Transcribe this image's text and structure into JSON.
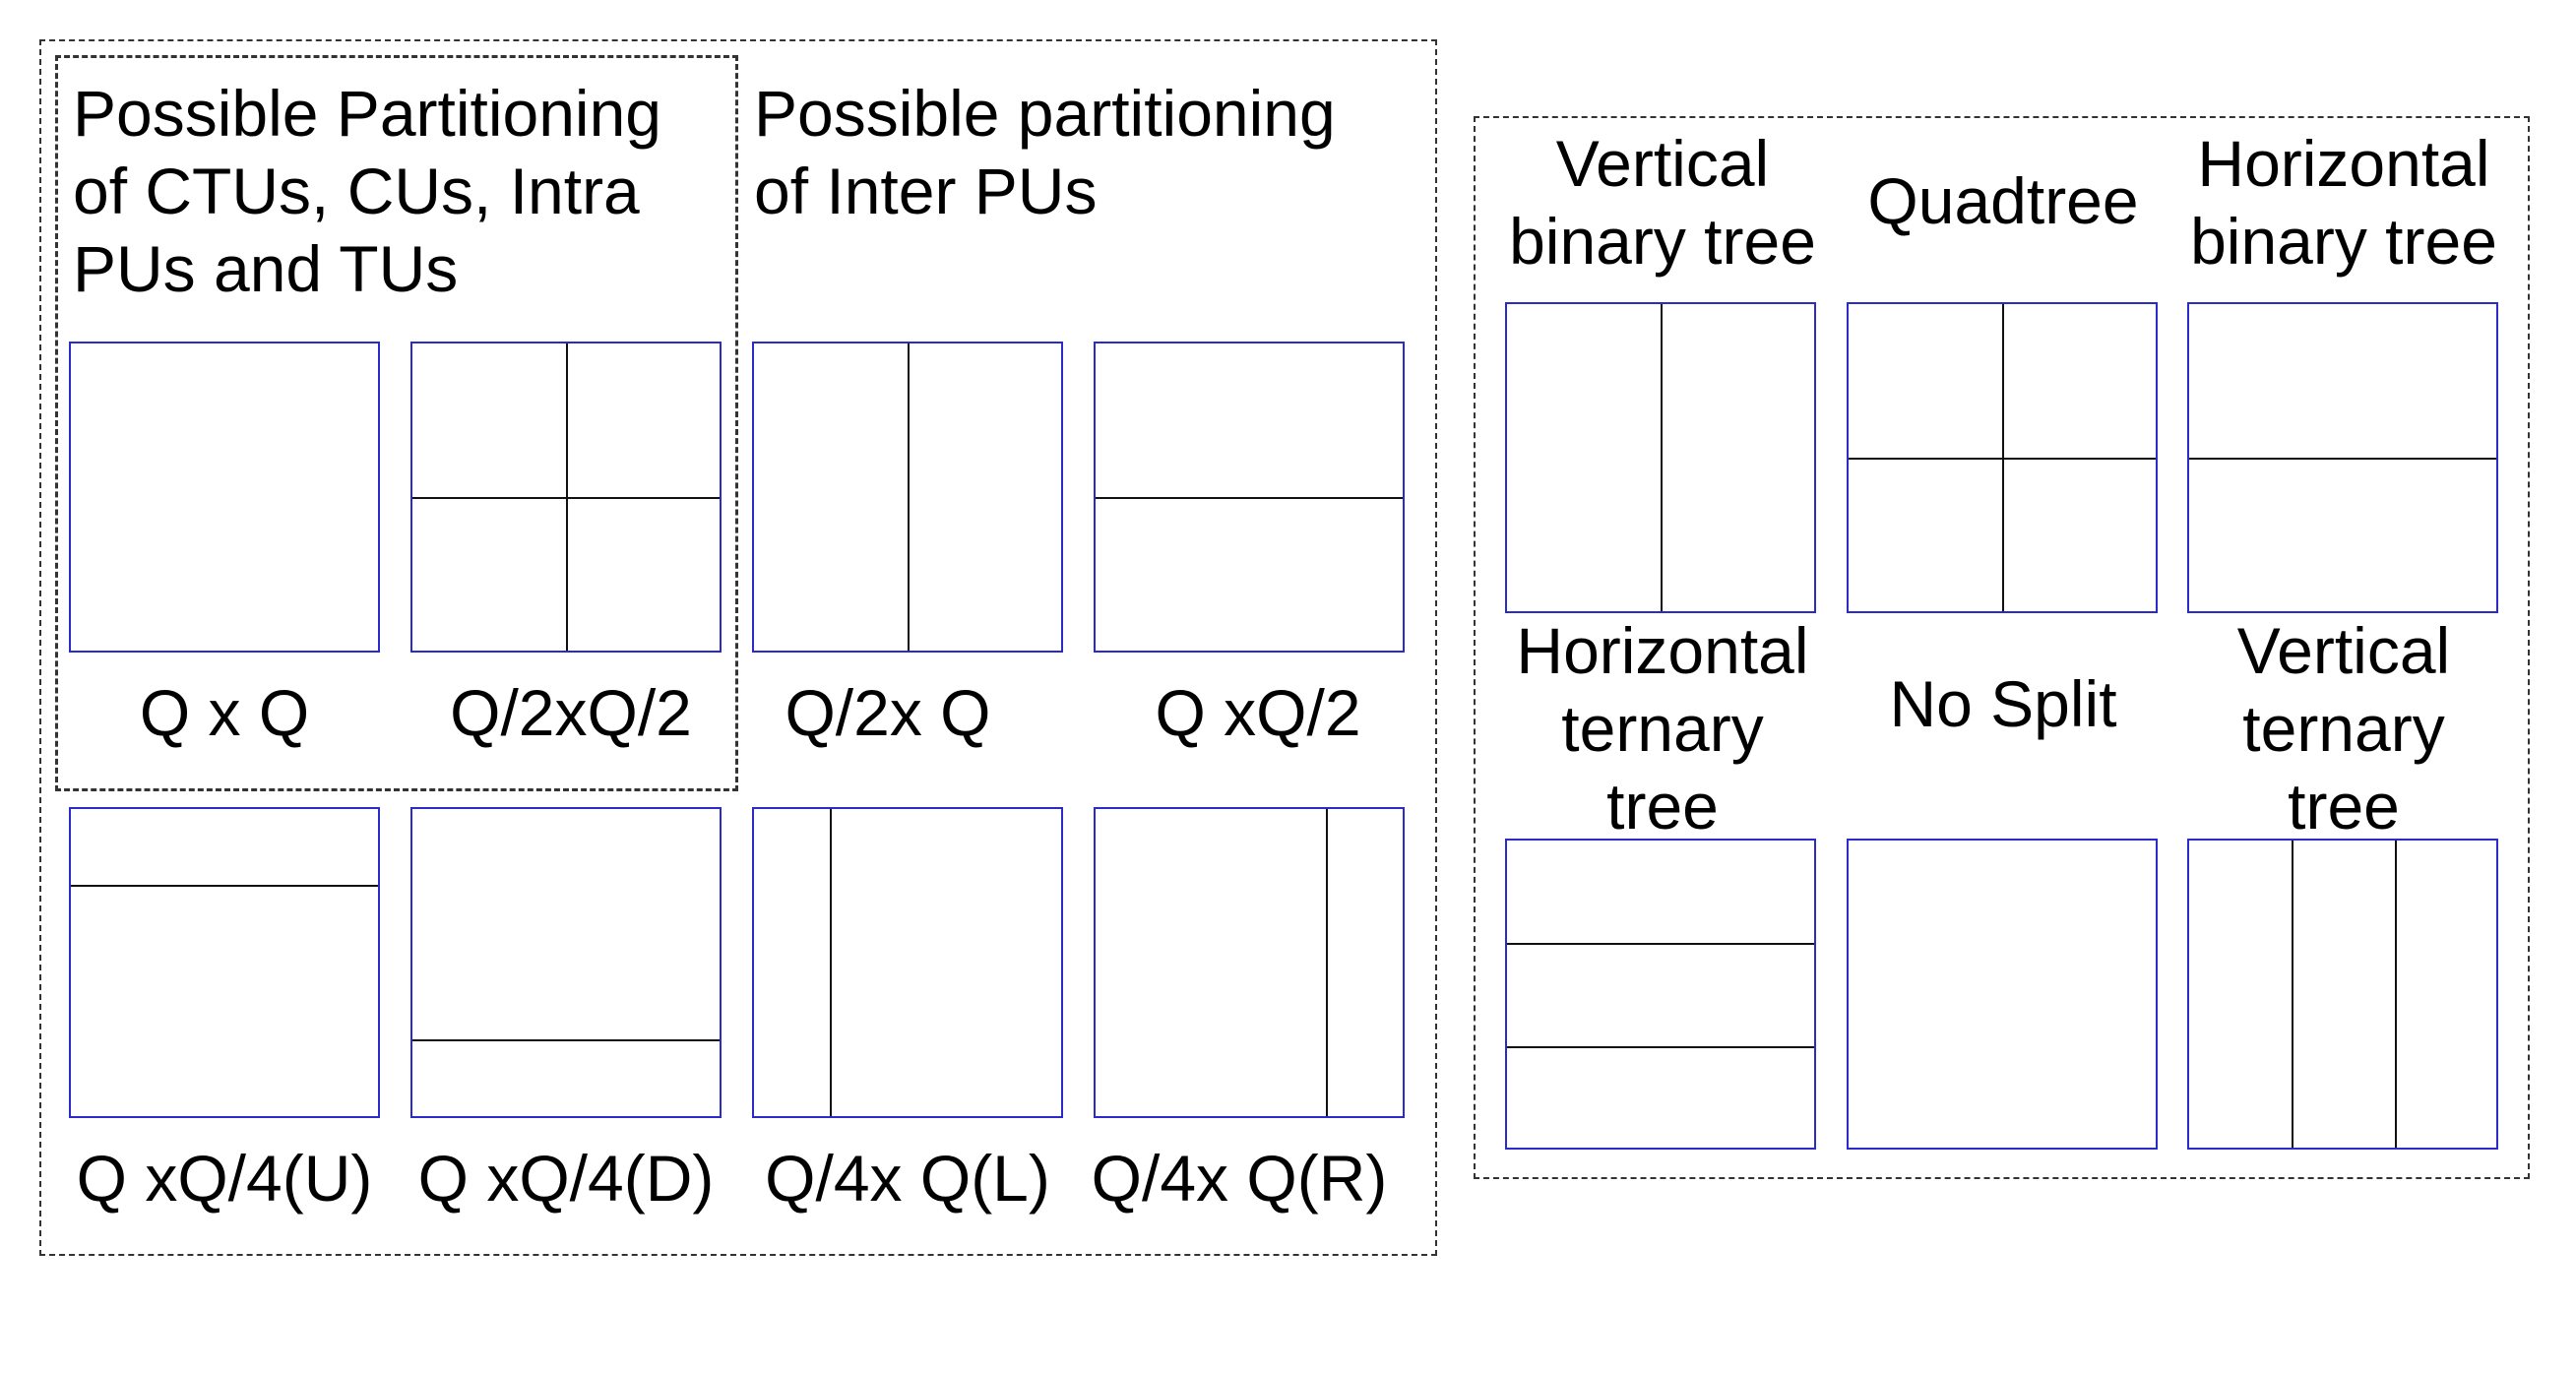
{
  "left_panel": {
    "heading_ctus": "Possible Partitioning\nof CTUs, CUs, Intra\nPUs and TUs",
    "heading_inter": "Possible partitioning\nof Inter PUs",
    "captions": {
      "qxq": "Q x Q",
      "q2xq2": "Q/2xQ/2",
      "q2xq": "Q/2x Q",
      "qxq2": "Q xQ/2",
      "qxq4u": "Q xQ/4(U)",
      "qxq4d": "Q xQ/4(D)",
      "q4xql": "Q/4x Q(L)",
      "q4xqr": "Q/4x Q(R)"
    }
  },
  "right_panel": {
    "vertical_binary_tree": "Vertical\nbinary tree",
    "quadtree": "Quadtree",
    "horizontal_binary_tree": "Horizontal\nbinary tree",
    "horizontal_ternary_tree": "Horizontal\nternary\ntree",
    "no_split": "No Split",
    "vertical_ternary_tree": "Vertical\nternary\ntree"
  },
  "colors": {
    "block_border": "#2b2bcc",
    "split_line": "#111111",
    "frame": "#333333"
  }
}
